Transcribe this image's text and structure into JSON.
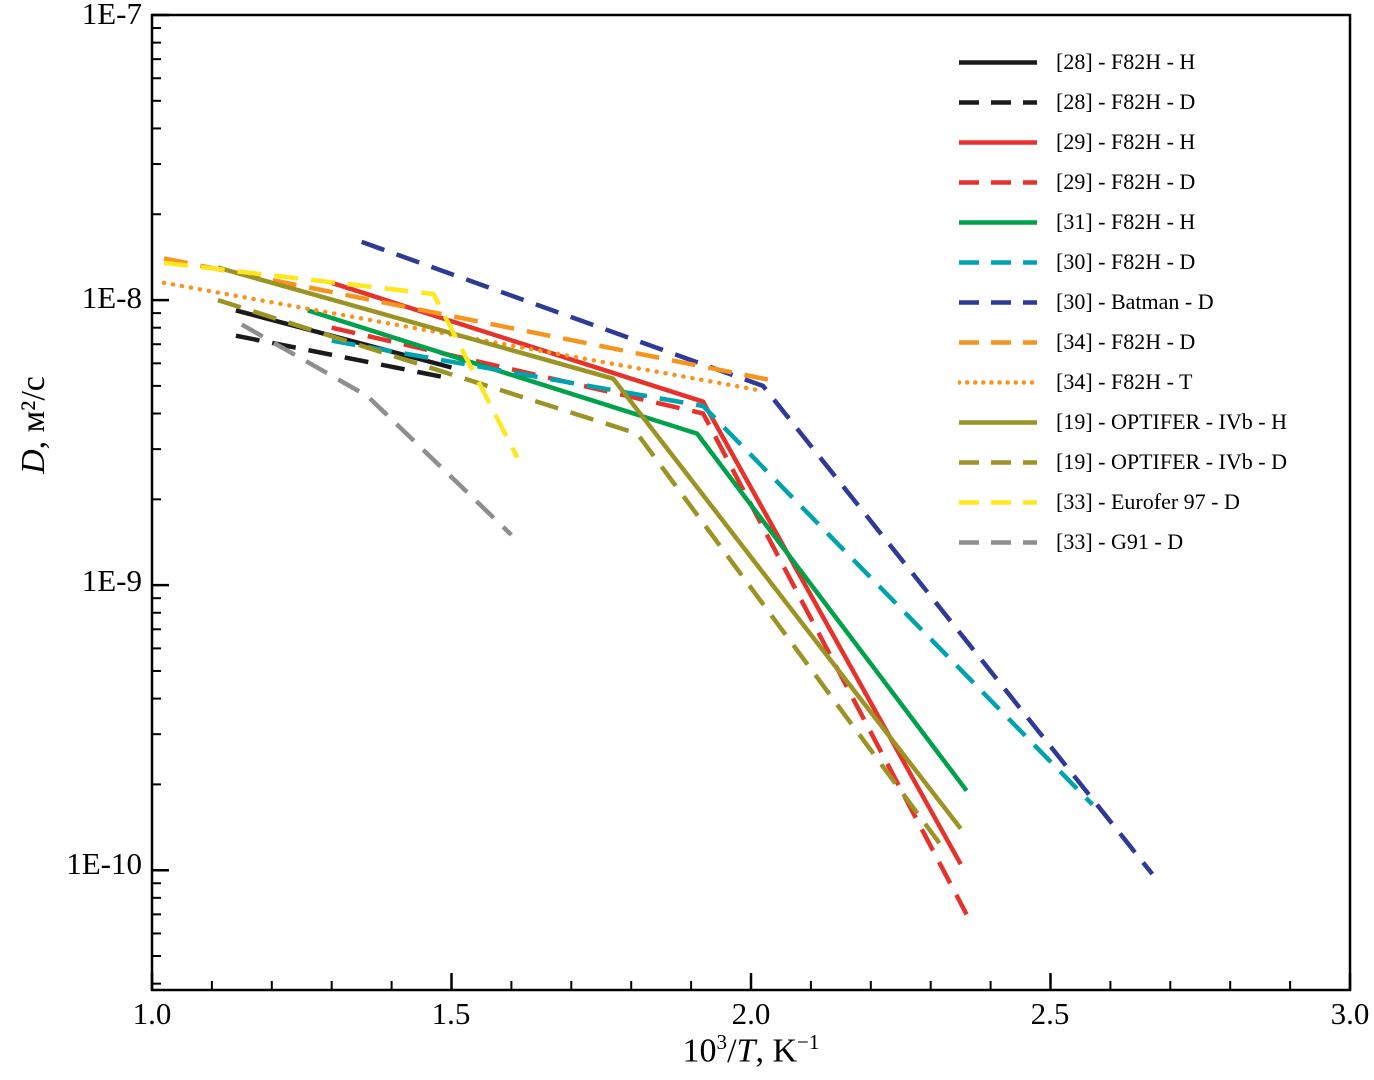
{
  "chart_data": {
    "type": "line",
    "title": "",
    "y_scale": "log",
    "grid": false,
    "legend_position": "top-right",
    "x_range": [
      1.0,
      3.0
    ],
    "y_range": [
      3.8e-11,
      1e-07
    ],
    "xlabel": {
      "base": "10",
      "exp": "3",
      "slash": "/",
      "variable": "T",
      "unit": ", K",
      "unit_exp": "−1",
      "text": "10³/T, K⁻¹"
    },
    "ylabel": {
      "variable": "D",
      "rest": ", м²/с",
      "text": "D, м²/с"
    },
    "x_ticks": [
      {
        "value": 1.0,
        "label": "1.0"
      },
      {
        "value": 1.5,
        "label": "1.5"
      },
      {
        "value": 2.0,
        "label": "2.0"
      },
      {
        "value": 2.5,
        "label": "2.5"
      },
      {
        "value": 3.0,
        "label": "3.0"
      }
    ],
    "y_ticks": [
      {
        "value": 1e-07,
        "label": "1E-7"
      },
      {
        "value": 1e-08,
        "label": "1E-8"
      },
      {
        "value": 1e-09,
        "label": "1E-9"
      },
      {
        "value": 1e-10,
        "label": "1E-10"
      }
    ],
    "series": [
      {
        "label": "[28] - F82H - H",
        "color": "#1a1a1a",
        "style": "solid",
        "points": [
          [
            1.14,
            9.2e-09
          ],
          [
            1.5,
            5.8e-09
          ]
        ]
      },
      {
        "label": "[28] - F82H - D",
        "color": "#1a1a1a",
        "style": "dashed",
        "points": [
          [
            1.14,
            7.5e-09
          ],
          [
            1.5,
            5.3e-09
          ]
        ]
      },
      {
        "label": "[29] - F82H - H",
        "color": "#e6322b",
        "style": "solid",
        "points": [
          [
            1.3,
            1.15e-08
          ],
          [
            1.92,
            4.4e-09
          ],
          [
            2.35,
            1.05e-10
          ]
        ]
      },
      {
        "label": "[29] - F82H - D",
        "color": "#e6322b",
        "style": "dashed",
        "points": [
          [
            1.3,
            8e-09
          ],
          [
            1.92,
            4e-09
          ],
          [
            2.36,
            7e-11
          ]
        ]
      },
      {
        "label": "[31] - F82H - H",
        "color": "#00a14b",
        "style": "solid",
        "points": [
          [
            1.26,
            9.2e-09
          ],
          [
            1.91,
            3.4e-09
          ],
          [
            2.36,
            1.9e-10
          ]
        ]
      },
      {
        "label": "[30] - F82H - D",
        "color": "#00a3ad",
        "style": "dashed",
        "points": [
          [
            1.3,
            7.2e-09
          ],
          [
            1.92,
            4.25e-09
          ],
          [
            2.57,
            1.7e-10
          ]
        ]
      },
      {
        "label": "[30] - Batman - D",
        "color": "#2e3a97",
        "style": "dashed",
        "points": [
          [
            1.35,
            1.6e-08
          ],
          [
            2.02,
            5e-09
          ],
          [
            2.67,
            9.7e-11
          ]
        ]
      },
      {
        "label": "[34] - F82H - D",
        "color": "#f7941e",
        "style": "dashed",
        "points": [
          [
            1.02,
            1.4e-08
          ],
          [
            2.04,
            5.2e-09
          ]
        ]
      },
      {
        "label": "[34] - F82H - T",
        "color": "#f7941e",
        "style": "dotted",
        "points": [
          [
            1.02,
            1.15e-08
          ],
          [
            2.02,
            4.8e-09
          ]
        ]
      },
      {
        "label": "[19] - OPTIFER - IVb - H",
        "color": "#9b9323",
        "style": "solid",
        "points": [
          [
            1.11,
            1.3e-08
          ],
          [
            1.77,
            5.3e-09
          ],
          [
            2.35,
            1.4e-10
          ]
        ]
      },
      {
        "label": "[19] - OPTIFER - IVb - D",
        "color": "#9b9323",
        "style": "dashed",
        "points": [
          [
            1.11,
            1e-08
          ],
          [
            1.81,
            3.4e-09
          ],
          [
            2.32,
            1.2e-10
          ]
        ]
      },
      {
        "label": "[33] - Eurofer 97 - D",
        "color": "#ffe71f",
        "style": "dashed",
        "points": [
          [
            1.02,
            1.35e-08
          ],
          [
            1.47,
            1.05e-08
          ],
          [
            1.61,
            2.8e-09
          ]
        ]
      },
      {
        "label": "[33] - G91 - D",
        "color": "#8e8e8e",
        "style": "dashed",
        "points": [
          [
            1.15,
            8.2e-09
          ],
          [
            1.36,
            4.6e-09
          ],
          [
            1.6,
            1.5e-09
          ]
        ]
      }
    ]
  }
}
